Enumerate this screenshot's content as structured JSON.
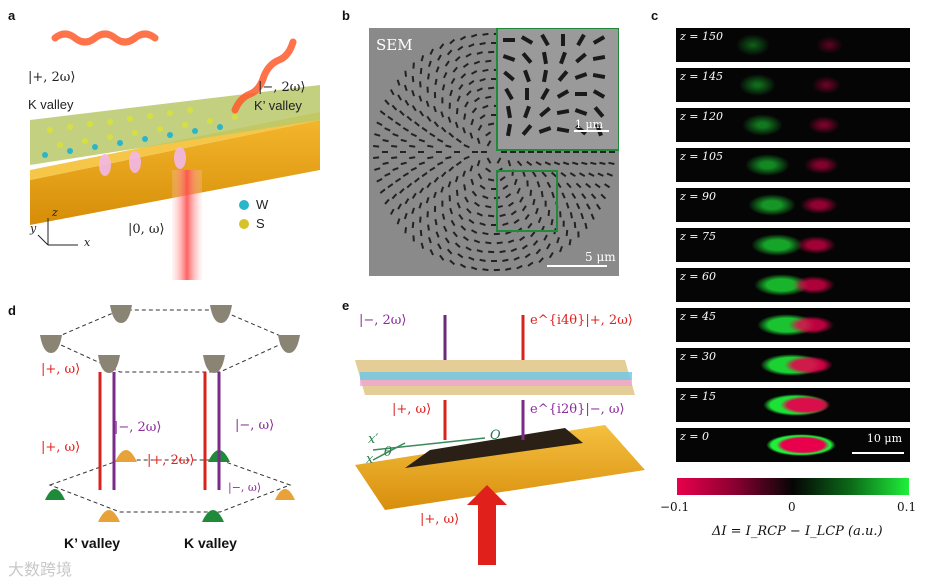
{
  "panels": {
    "a": {
      "letter": "a",
      "labels": {
        "plus2w": "|+, 2ω⟩",
        "k_valley": "K valley",
        "minus2w": "|−, 2ω⟩",
        "kprime_valley": "K’ valley",
        "zero_w": "|0, ω⟩",
        "w": "W",
        "s": "S",
        "axis_z": "z",
        "axis_y": "y",
        "axis_x": "x"
      }
    },
    "b": {
      "letter": "b",
      "title": "SEM",
      "inset_scale": "1 μm",
      "main_scale": "5 μm"
    },
    "c": {
      "letter": "c",
      "z_labels": [
        "z = 150",
        "z = 145",
        "z = 120",
        "z = 105",
        "z = 90",
        "z = 75",
        "z = 60",
        "z = 45",
        "z = 30",
        "z = 15",
        "z = 0"
      ],
      "scale": "10 μm",
      "colorbar": {
        "min": "−0.1",
        "mid": "0",
        "max": "0.1",
        "label": "ΔI = I_RCP − I_LCP (a.u.)",
        "low_color": "#e8004d",
        "high_color": "#1ff03a"
      }
    },
    "d": {
      "letter": "d",
      "labels": {
        "plus_w_top": "|+, ω⟩",
        "plus_w_bottom": "|+, ω⟩",
        "minus_2w": "|−, 2ω⟩",
        "minus_w": "|−, ω⟩",
        "plus_2w": "|+, 2ω⟩",
        "minus_w_low": "|−, ω⟩",
        "kprime_valley": "K’ valley",
        "k_valley": "K valley"
      }
    },
    "e": {
      "letter": "e",
      "labels": {
        "minus_2w": "|−, 2ω⟩",
        "plus_2w_phase": "e^{i4θ}|+, 2ω⟩",
        "plus_w": "|+, ω⟩",
        "minus_w_phase": "e^{i2θ}|−, ω⟩",
        "x_prime": "x′",
        "x": "x",
        "theta": "θ",
        "origin": "O",
        "input": "|+, ω⟩"
      }
    }
  },
  "watermark": "大数跨境"
}
